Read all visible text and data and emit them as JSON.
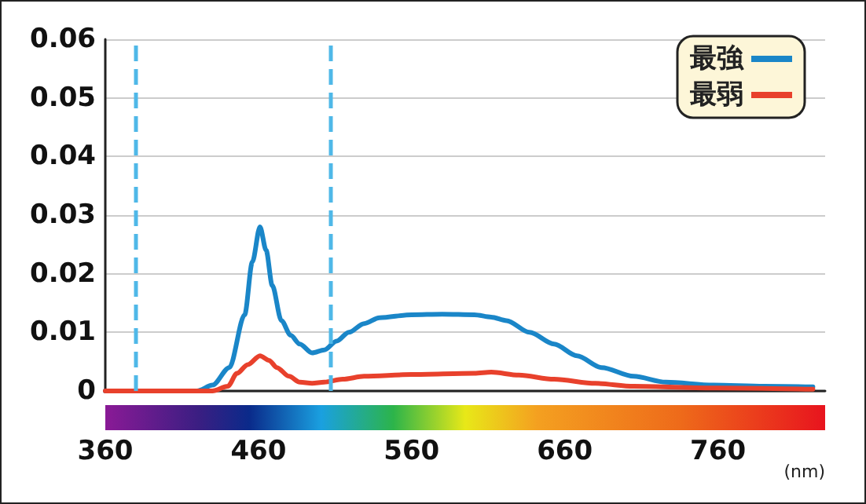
{
  "chart_data": {
    "type": "line",
    "xlabel": "(nm)",
    "xlim": [
      360,
      830
    ],
    "xticks": [
      360,
      460,
      560,
      660,
      760
    ],
    "ylim": [
      0,
      0.06
    ],
    "yticks": [
      {
        "value": 0,
        "label": "0"
      },
      0.01,
      0.02,
      0.03,
      0.04,
      0.05,
      0.06
    ],
    "grid": "y",
    "legend": "top right",
    "marker": "none",
    "line_style": "solid",
    "ref_lines": [
      {
        "axis": "x",
        "value": 380,
        "color": "#4fb8e8",
        "line_style": "dashed"
      },
      {
        "axis": "x",
        "value": 507,
        "color": "#4fb8e8",
        "line_style": "dashed"
      }
    ],
    "series": [
      {
        "name": "最強",
        "color": "#1a86c8",
        "x": [
          360,
          420,
          430,
          441,
          451,
          456,
          461,
          465,
          469,
          475,
          481,
          487,
          495,
          503,
          511,
          519,
          529,
          539,
          560,
          580,
          601,
          612,
          622,
          637,
          653,
          668,
          684,
          705,
          726,
          757,
          790,
          822
        ],
        "values": [
          0,
          0,
          0.001,
          0.004,
          0.013,
          0.022,
          0.028,
          0.024,
          0.018,
          0.012,
          0.0095,
          0.008,
          0.0065,
          0.007,
          0.0085,
          0.01,
          0.0115,
          0.0125,
          0.013,
          0.0131,
          0.013,
          0.0126,
          0.012,
          0.01,
          0.008,
          0.006,
          0.004,
          0.0025,
          0.0015,
          0.001,
          0.0008,
          0.0007
        ]
      },
      {
        "name": "最弱",
        "color": "#e8412c",
        "x": [
          360,
          430,
          440,
          446,
          453,
          461,
          467,
          472,
          480,
          487,
          495,
          503,
          515,
          529,
          560,
          601,
          612,
          630,
          653,
          680,
          705,
          760,
          822
        ],
        "values": [
          0,
          0,
          0.0008,
          0.003,
          0.0045,
          0.006,
          0.0052,
          0.004,
          0.0025,
          0.0015,
          0.0013,
          0.0015,
          0.002,
          0.0025,
          0.0028,
          0.003,
          0.0032,
          0.0027,
          0.002,
          0.0013,
          0.0008,
          0.0005,
          0.0003
        ]
      }
    ]
  }
}
